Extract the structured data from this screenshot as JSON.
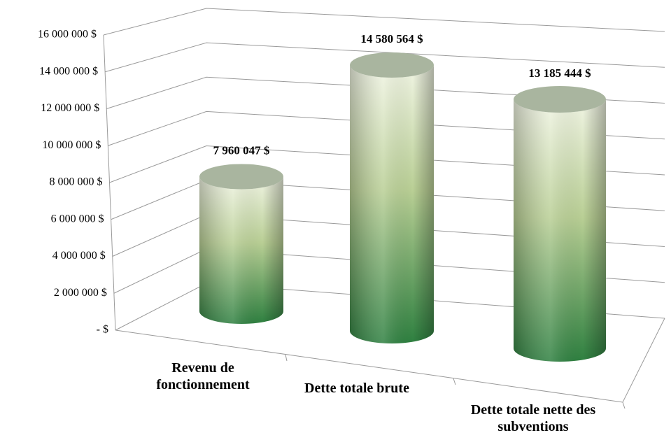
{
  "chart_data": {
    "type": "cylinder",
    "categories": [
      "Revenu de fonctionnement",
      "Dette totale brute",
      "Dette totale nette des subventions"
    ],
    "values": [
      7960047,
      14580564,
      13185444
    ],
    "value_labels": [
      "7 960 047  $",
      "14 580 564  $",
      "13 185 444  $"
    ],
    "color": "#2e8040",
    "ylim": [
      0,
      16000000
    ],
    "yticks": [
      {
        "value": 0,
        "label": "-   $"
      },
      {
        "value": 2000000,
        "label": "2 000 000  $"
      },
      {
        "value": 4000000,
        "label": "4 000 000  $"
      },
      {
        "value": 6000000,
        "label": "6 000 000  $"
      },
      {
        "value": 8000000,
        "label": "8 000 000  $"
      },
      {
        "value": 10000000,
        "label": "10 000 000  $"
      },
      {
        "value": 12000000,
        "label": "12 000 000  $"
      },
      {
        "value": 14000000,
        "label": "14 000 000  $"
      },
      {
        "value": 16000000,
        "label": "16 000 000  $"
      }
    ],
    "grid": true
  }
}
